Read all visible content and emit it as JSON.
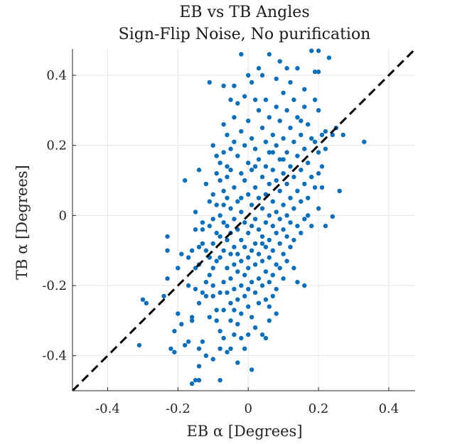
{
  "chart_data": {
    "type": "scatter",
    "title_line1": "EB vs TB Angles",
    "title_line2": "Sign-Flip Noise, No purification",
    "xlabel": "EB α [Degrees]",
    "ylabel": "TB α [Degrees]",
    "xlim": [
      -0.5,
      0.475
    ],
    "ylim": [
      -0.5,
      0.475
    ],
    "xticks": [
      -0.4,
      -0.2,
      0,
      0.2,
      0.4
    ],
    "xtick_labels": [
      "-0.4",
      "-0.2",
      "0",
      "0.2",
      "0.4"
    ],
    "yticks": [
      -0.4,
      -0.2,
      0,
      0.2,
      0.4
    ],
    "ytick_labels": [
      "-0.4",
      "-0.2",
      "0",
      "0.2",
      "0.4"
    ],
    "grid": true,
    "point_color": "#0a6fbd",
    "reference_line": {
      "style": "dashed",
      "color": "#000000",
      "from": [
        -0.5,
        -0.5
      ],
      "to": [
        0.475,
        0.475
      ]
    },
    "points": [
      [
        -0.31,
        -0.37
      ],
      [
        -0.3,
        -0.24
      ],
      [
        -0.29,
        -0.25
      ],
      [
        -0.24,
        -0.23
      ],
      [
        -0.23,
        -0.18
      ],
      [
        -0.23,
        -0.1
      ],
      [
        -0.23,
        -0.06
      ],
      [
        -0.22,
        -0.38
      ],
      [
        -0.21,
        -0.33
      ],
      [
        -0.21,
        -0.39
      ],
      [
        -0.2,
        -0.28
      ],
      [
        -0.2,
        -0.15
      ],
      [
        -0.19,
        -0.11
      ],
      [
        -0.18,
        0.1
      ],
      [
        -0.18,
        -0.37
      ],
      [
        -0.17,
        -0.36
      ],
      [
        -0.17,
        -0.2
      ],
      [
        -0.17,
        -0.12
      ],
      [
        -0.16,
        -0.29
      ],
      [
        -0.16,
        -0.1
      ],
      [
        -0.16,
        -0.48
      ],
      [
        -0.16,
        -0.3
      ],
      [
        -0.15,
        -0.47
      ],
      [
        -0.15,
        -0.21
      ],
      [
        -0.15,
        -0.15
      ],
      [
        -0.15,
        -0.04
      ],
      [
        -0.14,
        0.13
      ],
      [
        -0.14,
        -0.09
      ],
      [
        -0.14,
        -0.14
      ],
      [
        -0.14,
        -0.38
      ],
      [
        -0.14,
        -0.43
      ],
      [
        -0.14,
        -0.47
      ],
      [
        -0.13,
        -0.36
      ],
      [
        -0.13,
        -0.22
      ],
      [
        -0.13,
        -0.08
      ],
      [
        -0.13,
        -0.02
      ],
      [
        -0.12,
        0.09
      ],
      [
        -0.12,
        -0.1
      ],
      [
        -0.12,
        -0.19
      ],
      [
        -0.12,
        -0.23
      ],
      [
        -0.11,
        0.04
      ],
      [
        -0.11,
        -0.03
      ],
      [
        -0.11,
        -0.12
      ],
      [
        -0.11,
        -0.17
      ],
      [
        -0.11,
        -0.29
      ],
      [
        -0.1,
        0.2
      ],
      [
        -0.1,
        0.06
      ],
      [
        -0.1,
        -0.01
      ],
      [
        -0.1,
        -0.08
      ],
      [
        -0.1,
        -0.15
      ],
      [
        -0.1,
        -0.2
      ],
      [
        -0.1,
        -0.23
      ],
      [
        -0.09,
        0.17
      ],
      [
        -0.09,
        0.12
      ],
      [
        -0.09,
        0.03
      ],
      [
        -0.09,
        -0.05
      ],
      [
        -0.09,
        -0.13
      ],
      [
        -0.09,
        -0.27
      ],
      [
        -0.09,
        -0.3
      ],
      [
        -0.08,
        0.15
      ],
      [
        -0.08,
        0.1
      ],
      [
        -0.08,
        0.0
      ],
      [
        -0.08,
        -0.06
      ],
      [
        -0.08,
        -0.12
      ],
      [
        -0.08,
        -0.22
      ],
      [
        -0.08,
        -0.33
      ],
      [
        -0.08,
        -0.47
      ],
      [
        -0.07,
        0.37
      ],
      [
        -0.07,
        0.26
      ],
      [
        -0.07,
        0.18
      ],
      [
        -0.07,
        0.07
      ],
      [
        -0.07,
        -0.02
      ],
      [
        -0.07,
        -0.1
      ],
      [
        -0.07,
        -0.19
      ],
      [
        -0.07,
        -0.27
      ],
      [
        -0.07,
        -0.35
      ],
      [
        -0.06,
        0.23
      ],
      [
        -0.06,
        0.11
      ],
      [
        -0.06,
        0.05
      ],
      [
        -0.06,
        -0.03
      ],
      [
        -0.06,
        -0.07
      ],
      [
        -0.06,
        -0.15
      ],
      [
        -0.06,
        -0.22
      ],
      [
        -0.06,
        -0.39
      ],
      [
        -0.05,
        0.33
      ],
      [
        -0.05,
        0.19
      ],
      [
        -0.05,
        0.13
      ],
      [
        -0.05,
        0.02
      ],
      [
        -0.05,
        -0.05
      ],
      [
        -0.05,
        -0.11
      ],
      [
        -0.05,
        -0.18
      ],
      [
        -0.05,
        -0.25
      ],
      [
        -0.05,
        -0.3
      ],
      [
        -0.05,
        -0.38
      ],
      [
        -0.04,
        0.37
      ],
      [
        -0.04,
        0.28
      ],
      [
        -0.04,
        0.21
      ],
      [
        -0.04,
        0.08
      ],
      [
        -0.04,
        -0.01
      ],
      [
        -0.04,
        -0.09
      ],
      [
        -0.04,
        -0.14
      ],
      [
        -0.04,
        -0.21
      ],
      [
        -0.04,
        -0.27
      ],
      [
        -0.04,
        -0.34
      ],
      [
        -0.03,
        0.32
      ],
      [
        -0.03,
        0.17
      ],
      [
        -0.03,
        0.04
      ],
      [
        -0.03,
        -0.04
      ],
      [
        -0.03,
        -0.11
      ],
      [
        -0.03,
        -0.16
      ],
      [
        -0.03,
        -0.24
      ],
      [
        -0.03,
        -0.31
      ],
      [
        -0.02,
        0.46
      ],
      [
        -0.02,
        0.24
      ],
      [
        -0.02,
        0.12
      ],
      [
        -0.02,
        0.01
      ],
      [
        -0.02,
        -0.07
      ],
      [
        -0.02,
        -0.13
      ],
      [
        -0.02,
        -0.2
      ],
      [
        -0.02,
        -0.28
      ],
      [
        -0.02,
        -0.35
      ],
      [
        -0.01,
        0.34
      ],
      [
        -0.01,
        0.2
      ],
      [
        -0.01,
        0.1
      ],
      [
        -0.01,
        -0.02
      ],
      [
        -0.01,
        -0.09
      ],
      [
        -0.01,
        -0.17
      ],
      [
        -0.01,
        -0.23
      ],
      [
        -0.01,
        -0.38
      ],
      [
        0.0,
        0.27
      ],
      [
        0.0,
        0.15
      ],
      [
        0.0,
        0.06
      ],
      [
        0.0,
        -0.05
      ],
      [
        0.0,
        -0.12
      ],
      [
        0.0,
        -0.15
      ],
      [
        0.0,
        -0.21
      ],
      [
        0.0,
        -0.26
      ],
      [
        0.0,
        -0.34
      ],
      [
        0.01,
        0.38
      ],
      [
        0.01,
        0.22
      ],
      [
        0.01,
        0.13
      ],
      [
        0.01,
        0.03
      ],
      [
        0.01,
        -0.03
      ],
      [
        0.01,
        -0.1
      ],
      [
        0.01,
        -0.19
      ],
      [
        0.01,
        -0.29
      ],
      [
        0.02,
        0.19
      ],
      [
        0.02,
        0.08
      ],
      [
        0.02,
        -0.01
      ],
      [
        0.02,
        -0.08
      ],
      [
        0.02,
        -0.14
      ],
      [
        0.02,
        -0.22
      ],
      [
        0.02,
        -0.32
      ],
      [
        0.03,
        0.3
      ],
      [
        0.03,
        0.16
      ],
      [
        0.03,
        0.05
      ],
      [
        0.03,
        -0.04
      ],
      [
        0.03,
        -0.11
      ],
      [
        0.03,
        -0.18
      ],
      [
        0.03,
        -0.25
      ],
      [
        0.04,
        0.4
      ],
      [
        0.04,
        0.25
      ],
      [
        0.04,
        0.11
      ],
      [
        0.04,
        0.02
      ],
      [
        0.04,
        -0.06
      ],
      [
        0.04,
        -0.13
      ],
      [
        0.04,
        -0.2
      ],
      [
        0.04,
        -0.34
      ],
      [
        0.05,
        0.33
      ],
      [
        0.05,
        0.21
      ],
      [
        0.05,
        0.14
      ],
      [
        0.05,
        0.06
      ],
      [
        0.05,
        -0.02
      ],
      [
        0.05,
        -0.09
      ],
      [
        0.05,
        -0.16
      ],
      [
        0.05,
        -0.24
      ],
      [
        0.05,
        -0.35
      ],
      [
        0.06,
        0.46
      ],
      [
        0.06,
        0.28
      ],
      [
        0.06,
        0.18
      ],
      [
        0.06,
        0.09
      ],
      [
        0.06,
        0.0
      ],
      [
        0.06,
        -0.07
      ],
      [
        0.06,
        -0.12
      ],
      [
        0.06,
        -0.19
      ],
      [
        0.06,
        -0.26
      ],
      [
        0.07,
        0.23
      ],
      [
        0.07,
        0.13
      ],
      [
        0.07,
        0.04
      ],
      [
        0.07,
        -0.03
      ],
      [
        0.07,
        -0.1
      ],
      [
        0.07,
        -0.17
      ],
      [
        0.07,
        -0.23
      ],
      [
        0.08,
        0.39
      ],
      [
        0.08,
        0.31
      ],
      [
        0.08,
        0.2
      ],
      [
        0.08,
        0.1
      ],
      [
        0.08,
        0.01
      ],
      [
        0.08,
        -0.05
      ],
      [
        0.08,
        -0.14
      ],
      [
        0.08,
        -0.21
      ],
      [
        0.09,
        0.27
      ],
      [
        0.09,
        0.16
      ],
      [
        0.09,
        0.07
      ],
      [
        0.09,
        -0.01
      ],
      [
        0.09,
        -0.08
      ],
      [
        0.09,
        -0.15
      ],
      [
        0.1,
        0.35
      ],
      [
        0.1,
        0.22
      ],
      [
        0.1,
        0.12
      ],
      [
        0.1,
        0.03
      ],
      [
        0.1,
        -0.04
      ],
      [
        0.1,
        -0.11
      ],
      [
        0.1,
        -0.18
      ],
      [
        0.11,
        0.42
      ],
      [
        0.11,
        0.3
      ],
      [
        0.11,
        0.18
      ],
      [
        0.11,
        0.09
      ],
      [
        0.11,
        0.0
      ],
      [
        0.11,
        -0.06
      ],
      [
        0.11,
        -0.13
      ],
      [
        0.12,
        0.25
      ],
      [
        0.12,
        0.14
      ],
      [
        0.12,
        0.05
      ],
      [
        0.12,
        -0.02
      ],
      [
        0.12,
        -0.09
      ],
      [
        0.13,
        0.33
      ],
      [
        0.13,
        0.21
      ],
      [
        0.13,
        0.11
      ],
      [
        0.13,
        0.02
      ],
      [
        0.13,
        -0.07
      ],
      [
        0.14,
        0.42
      ],
      [
        0.14,
        0.28
      ],
      [
        0.14,
        0.17
      ],
      [
        0.14,
        0.07
      ],
      [
        0.14,
        -0.03
      ],
      [
        0.14,
        -0.19
      ],
      [
        0.15,
        0.23
      ],
      [
        0.15,
        0.13
      ],
      [
        0.15,
        0.04
      ],
      [
        0.15,
        -0.05
      ],
      [
        0.16,
        0.31
      ],
      [
        0.16,
        0.19
      ],
      [
        0.16,
        0.09
      ],
      [
        0.16,
        -0.01
      ],
      [
        0.16,
        -0.2
      ],
      [
        0.17,
        0.26
      ],
      [
        0.17,
        0.15
      ],
      [
        0.17,
        0.05
      ],
      [
        0.18,
        0.47
      ],
      [
        0.18,
        0.22
      ],
      [
        0.18,
        0.11
      ],
      [
        0.18,
        -0.03
      ],
      [
        0.19,
        0.33
      ],
      [
        0.19,
        0.21
      ],
      [
        0.19,
        0.08
      ],
      [
        0.19,
        0.41
      ],
      [
        0.2,
        0.41
      ],
      [
        0.2,
        0.3
      ],
      [
        0.2,
        0.18
      ],
      [
        0.2,
        0.12
      ],
      [
        0.2,
        0.02
      ],
      [
        0.2,
        0.47
      ],
      [
        0.21,
        0.23
      ],
      [
        0.21,
        0.14
      ],
      [
        0.21,
        0.08
      ],
      [
        0.22,
        0.24
      ],
      [
        0.22,
        0.19
      ],
      [
        0.22,
        -0.03
      ],
      [
        0.23,
        0.45
      ],
      [
        0.24,
        -0.003
      ],
      [
        0.24,
        0.23
      ],
      [
        0.25,
        0.25
      ],
      [
        0.26,
        0.07
      ],
      [
        0.27,
        0.23
      ],
      [
        0.33,
        0.21
      ],
      [
        -0.11,
        0.38
      ],
      [
        0.0,
        0.4
      ],
      [
        0.03,
        0.42
      ],
      [
        0.16,
        0.36
      ],
      [
        -0.06,
        0.14
      ],
      [
        0.02,
        0.33
      ],
      [
        0.09,
        0.44
      ],
      [
        0.12,
        0.38
      ],
      [
        -0.12,
        -0.4
      ],
      [
        0.06,
        -0.3
      ],
      [
        -0.03,
        -0.42
      ],
      [
        0.08,
        -0.28
      ],
      [
        -0.1,
        -0.41
      ],
      [
        0.01,
        -0.44
      ],
      [
        -0.19,
        -0.31
      ],
      [
        -0.14,
        -0.25
      ],
      [
        0.13,
        -0.15
      ],
      [
        0.17,
        0.0
      ],
      [
        -0.02,
        0.05
      ],
      [
        0.04,
        -0.08
      ],
      [
        -0.07,
        0.03
      ],
      [
        0.1,
        0.16
      ],
      [
        0.15,
        0.27
      ],
      [
        -0.15,
        0.01
      ],
      [
        -0.13,
        -0.04
      ],
      [
        0.02,
        0.14
      ],
      [
        0.07,
        0.18
      ],
      [
        -0.08,
        -0.38
      ]
    ]
  }
}
